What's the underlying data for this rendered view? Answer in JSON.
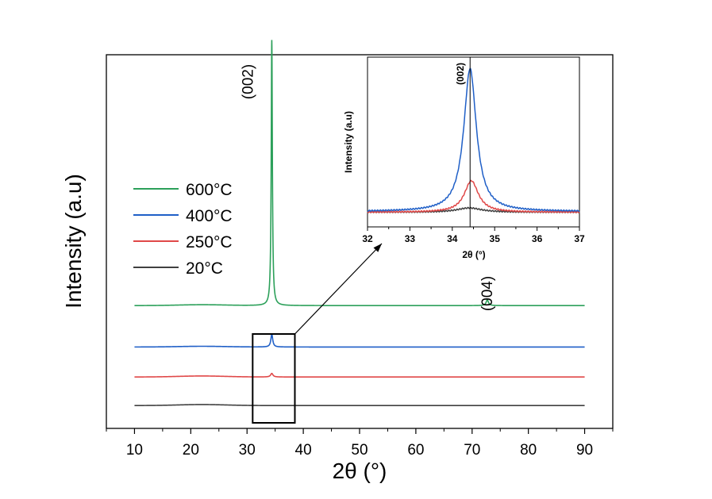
{
  "chart_data": [
    {
      "type": "line",
      "xlabel": "2θ (°)",
      "ylabel": "Intensity (a.u)",
      "xlim": [
        5,
        95
      ],
      "xticks": [
        10,
        20,
        30,
        40,
        50,
        60,
        70,
        80,
        90
      ],
      "x_range_data": [
        10,
        90
      ],
      "grid": false,
      "legend_placement": "middle-left",
      "series": [
        {
          "name": "600°C",
          "color": "#2ca05a",
          "offset": 8.6,
          "peaks": [
            {
              "x": 34.4,
              "height": 18.6,
              "width": 0.12
            },
            {
              "x": 72.7,
              "height": 0.4,
              "width": 0.25
            }
          ],
          "broad_hump": {
            "x": 22,
            "height": 0.06,
            "width": 6
          }
        },
        {
          "name": "400°C",
          "color": "#1f5fc7",
          "offset": 5.7,
          "peaks": [
            {
              "x": 34.4,
              "height": 0.9,
              "width": 0.2
            }
          ],
          "broad_hump": {
            "x": 22,
            "height": 0.05,
            "width": 6
          }
        },
        {
          "name": "250°C",
          "color": "#e04848",
          "offset": 3.6,
          "peaks": [
            {
              "x": 34.4,
              "height": 0.25,
              "width": 0.25
            }
          ],
          "broad_hump": {
            "x": 22,
            "height": 0.07,
            "width": 6
          }
        },
        {
          "name": "20°C",
          "color": "#404040",
          "offset": 1.6,
          "peaks": [],
          "broad_hump": {
            "x": 22,
            "height": 0.07,
            "width": 6
          }
        }
      ],
      "annotations": [
        {
          "text": "(002)",
          "x": 34.4
        },
        {
          "text": "(004)",
          "x": 72.7
        }
      ],
      "zoom_box": {
        "x_range": [
          31,
          38.5
        ]
      }
    },
    {
      "type": "line",
      "inset": true,
      "xlabel": "2θ (°)",
      "ylabel": "Intensity (a.u)",
      "xlim": [
        32,
        37
      ],
      "xticks": [
        32,
        33,
        34,
        35,
        36,
        37
      ],
      "reference_line": {
        "x": 34.42,
        "label": "(002)"
      },
      "series": [
        {
          "name": "400°C",
          "color": "#1f5fc7",
          "baseline": 0.03,
          "peak_x": 34.42,
          "peak_height": 1.0,
          "width": 0.18
        },
        {
          "name": "250°C",
          "color": "#e04848",
          "baseline": 0.025,
          "peak_x": 34.45,
          "peak_height": 0.22,
          "width": 0.2
        },
        {
          "name": "20°C",
          "color": "#404040",
          "baseline": 0.025,
          "peak_x": 34.4,
          "peak_height": 0.03,
          "width": 0.35
        }
      ]
    }
  ]
}
